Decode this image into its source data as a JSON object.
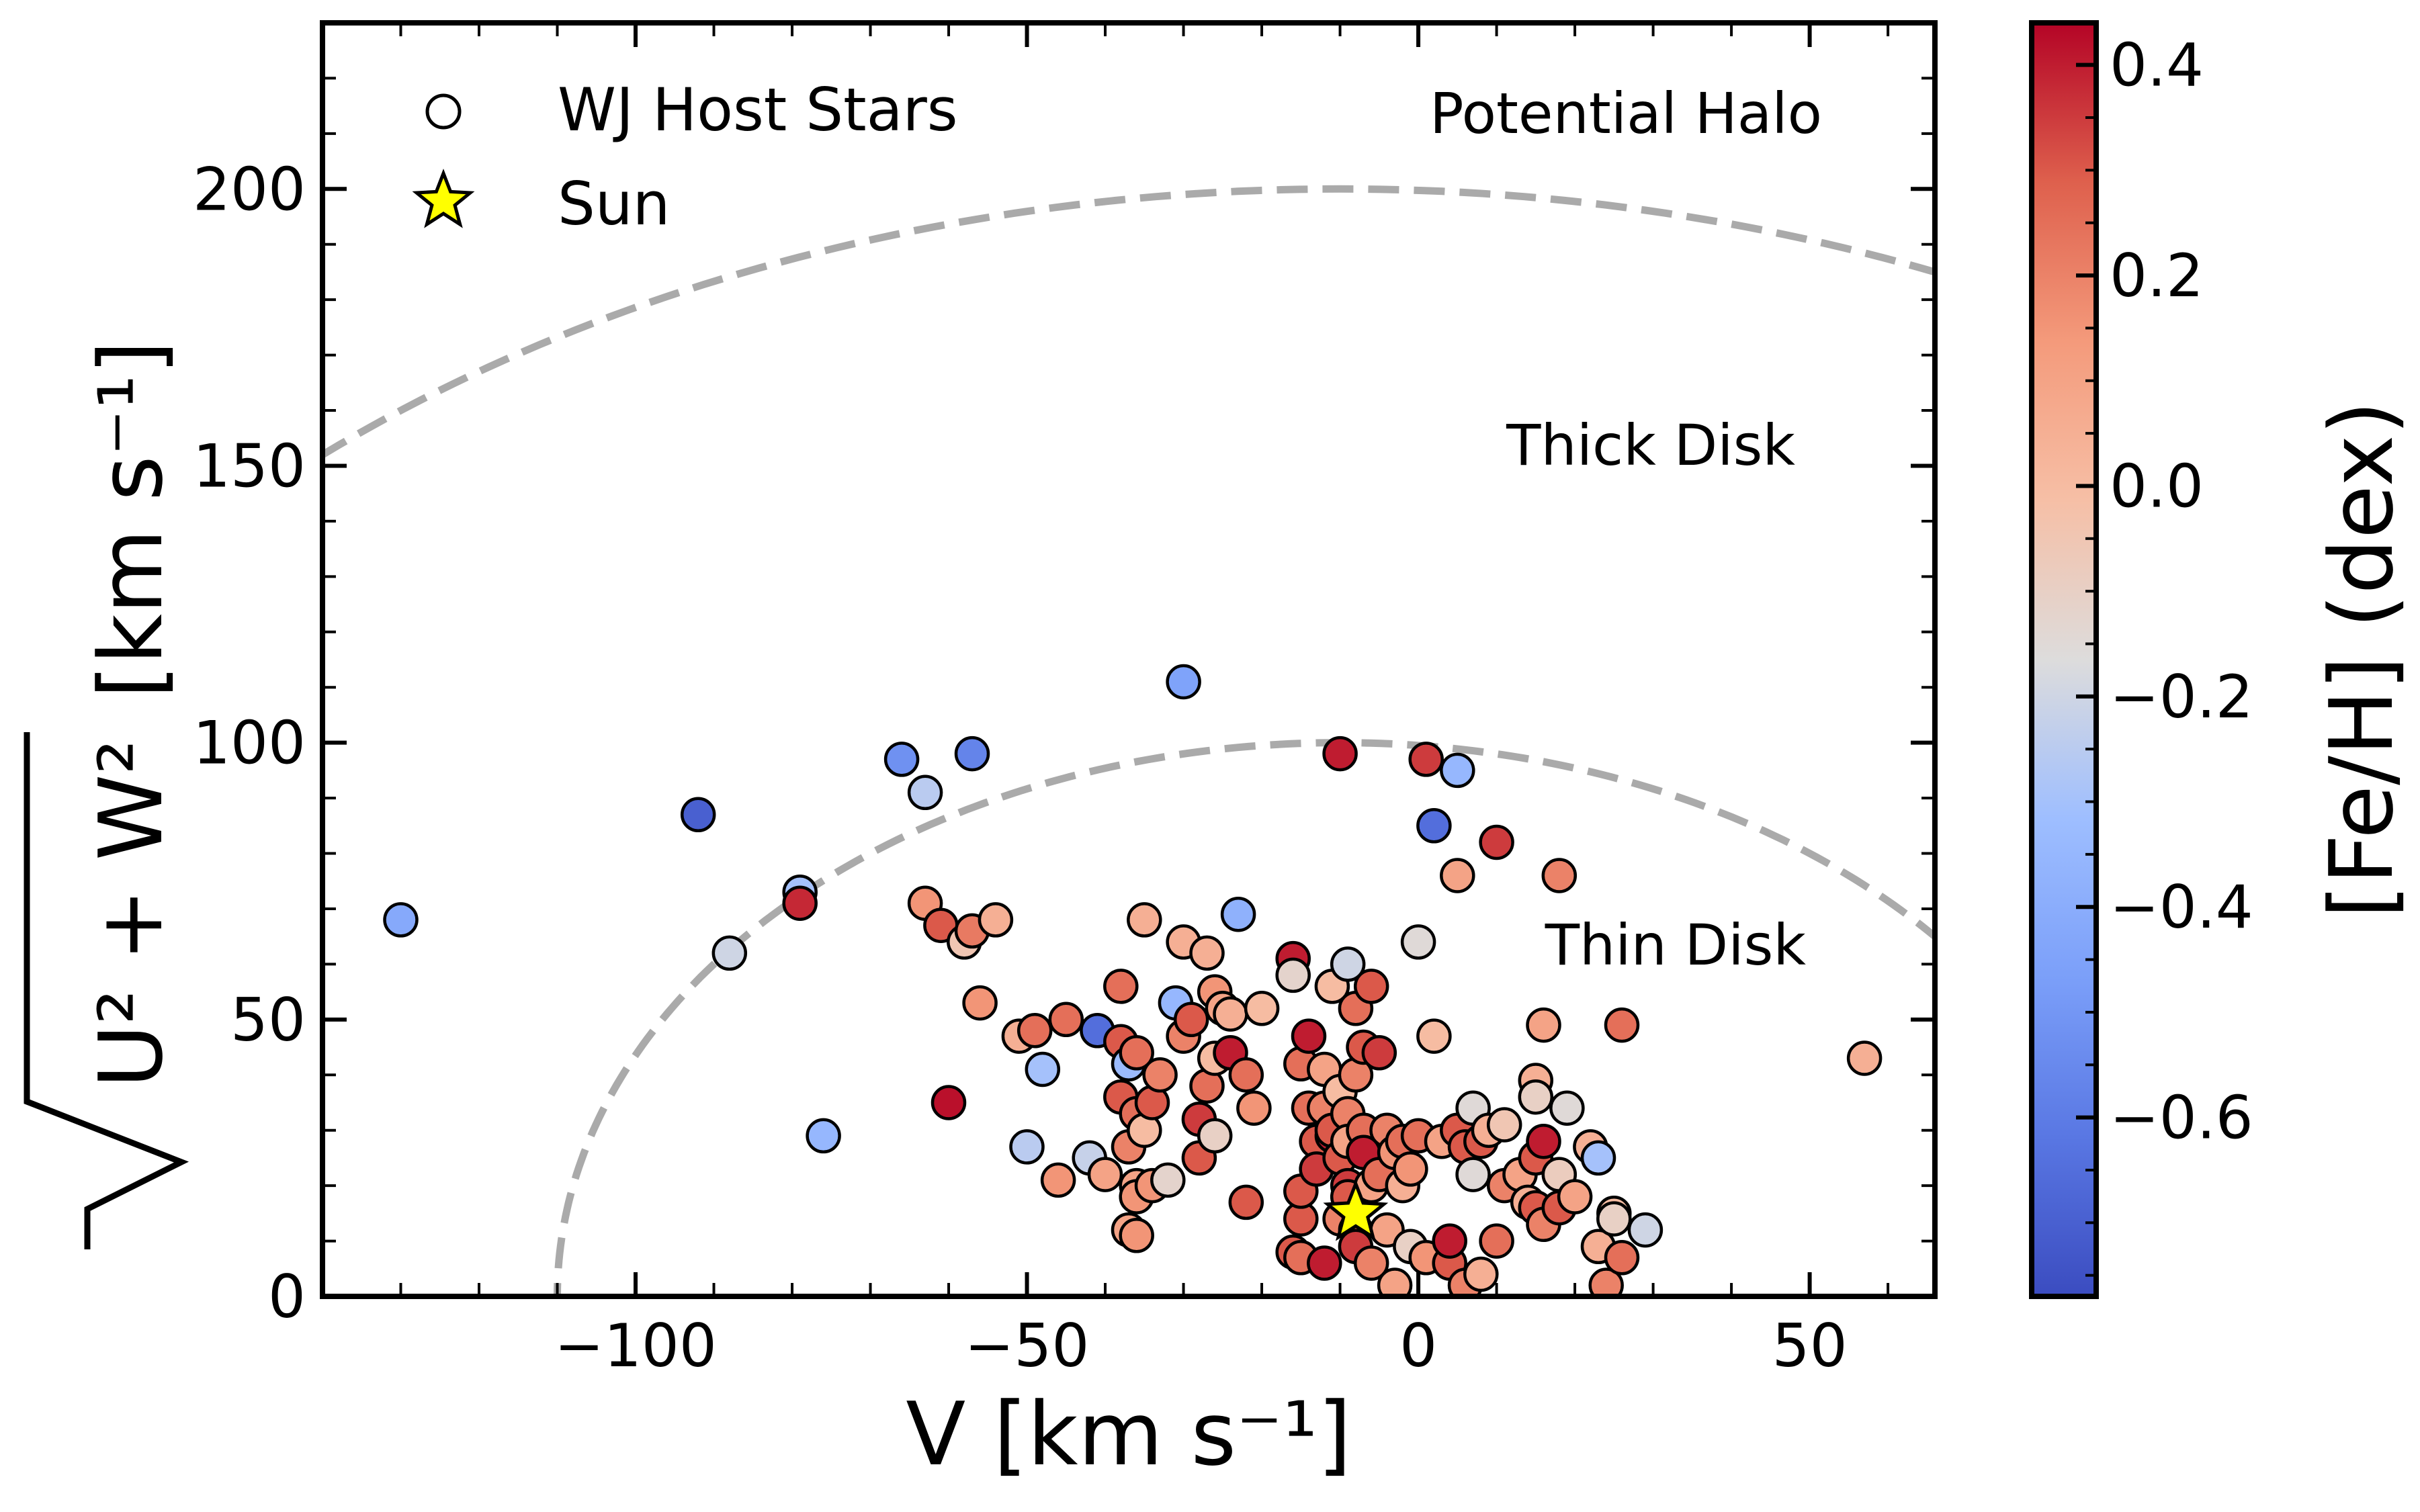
{
  "chart_data": {
    "type": "scatter",
    "title": "",
    "xlabel": "V [km s⁻¹]",
    "ylabel_radical": "U² + W²",
    "ylabel_units": "[km s⁻¹]",
    "xlim": [
      -140,
      66
    ],
    "ylim": [
      0,
      230
    ],
    "xticks": [
      -100,
      -50,
      0,
      50
    ],
    "xtick_labels": [
      "−100",
      "−50",
      "0",
      "50"
    ],
    "yticks": [
      0,
      50,
      100,
      150,
      200
    ],
    "ytick_labels": [
      "0",
      "50",
      "100",
      "150",
      "200"
    ],
    "grid": false,
    "legend_position": "top-left",
    "legend": [
      {
        "label": "WJ Host Stars",
        "marker": "circle-open"
      },
      {
        "label": "Sun",
        "marker": "star",
        "color": "#ffff00"
      }
    ],
    "annotations": [
      "Potential Halo",
      "Thick Disk",
      "Thin Disk"
    ],
    "boundaries": [
      {
        "style": "dashed",
        "color": "#aaaaaa",
        "v_lsr": -10,
        "radius": 100
      },
      {
        "style": "dashed",
        "color": "#aaaaaa",
        "v_lsr": -10,
        "radius": 200
      }
    ],
    "colorbar": {
      "label": "[Fe/H] (dex)",
      "cmap": "coolwarm",
      "range": [
        -0.77,
        0.44
      ],
      "ticks": [
        0.4,
        0.2,
        0.0,
        -0.2,
        -0.4,
        -0.6
      ],
      "tick_labels": [
        "0.4",
        "0.2",
        "0.0",
        "−0.2",
        "−0.4",
        "−0.6"
      ]
    },
    "sun": {
      "x": -8,
      "y": 15
    },
    "series": [
      {
        "name": "WJ Host Stars",
        "points": [
          [
            -130,
            68,
            -0.42
          ],
          [
            -92,
            87,
            -0.7
          ],
          [
            -88,
            62,
            -0.2
          ],
          [
            -79,
            73,
            -0.3
          ],
          [
            -79,
            71,
            0.38
          ],
          [
            -76,
            29,
            -0.35
          ],
          [
            -66,
            97,
            -0.52
          ],
          [
            -63,
            91,
            -0.25
          ],
          [
            -63,
            71,
            0.15
          ],
          [
            -61,
            67,
            0.3
          ],
          [
            -60,
            35,
            0.42
          ],
          [
            -58,
            64,
            -0.05
          ],
          [
            -57,
            98,
            -0.57
          ],
          [
            -57,
            66,
            0.22
          ],
          [
            -56,
            53,
            0.15
          ],
          [
            -54,
            68,
            0.05
          ],
          [
            -51,
            47,
            0.05
          ],
          [
            -50,
            27,
            -0.25
          ],
          [
            -49,
            48,
            0.25
          ],
          [
            -48,
            41,
            -0.3
          ],
          [
            -46,
            21,
            0.15
          ],
          [
            -45,
            50,
            0.25
          ],
          [
            -42,
            25,
            -0.22
          ],
          [
            -41,
            48,
            -0.65
          ],
          [
            -40,
            22,
            0.1
          ],
          [
            -38,
            56,
            0.25
          ],
          [
            -38,
            46,
            0.3
          ],
          [
            -38,
            36,
            0.3
          ],
          [
            -37,
            12,
            0.1
          ],
          [
            -37,
            27,
            0.2
          ],
          [
            -37,
            42,
            -0.33
          ],
          [
            -36,
            44,
            0.25
          ],
          [
            -36,
            33,
            0.25
          ],
          [
            -36,
            20,
            0.1
          ],
          [
            -36,
            18,
            0.15
          ],
          [
            -36,
            11,
            0.15
          ],
          [
            -35,
            68,
            0.05
          ],
          [
            -35,
            30,
            0.0
          ],
          [
            -34,
            20,
            0.15
          ],
          [
            -34,
            35,
            0.3
          ],
          [
            -33,
            40,
            0.2
          ],
          [
            -32,
            21,
            -0.12
          ],
          [
            -31,
            53,
            -0.35
          ],
          [
            -30,
            111,
            -0.45
          ],
          [
            -30,
            47,
            0.2
          ],
          [
            -30,
            64,
            0.05
          ],
          [
            -29,
            50,
            0.3
          ],
          [
            -28,
            32,
            0.35
          ],
          [
            -28,
            25,
            0.3
          ],
          [
            -27,
            62,
            0.05
          ],
          [
            -27,
            38,
            0.25
          ],
          [
            -26,
            55,
            0.15
          ],
          [
            -26,
            29,
            -0.1
          ],
          [
            -26,
            43,
            0.0
          ],
          [
            -25,
            52,
            0.1
          ],
          [
            -24,
            44,
            0.4
          ],
          [
            -24,
            51,
            0.05
          ],
          [
            -23,
            69,
            -0.38
          ],
          [
            -22,
            17,
            0.3
          ],
          [
            -22,
            40,
            0.25
          ],
          [
            -21,
            34,
            0.15
          ],
          [
            -20,
            52,
            0.0
          ],
          [
            -16,
            61,
            0.4
          ],
          [
            -16,
            58,
            -0.12
          ],
          [
            -16,
            8,
            0.3
          ],
          [
            -15,
            7,
            0.25
          ],
          [
            -15,
            14,
            0.3
          ],
          [
            -15,
            19,
            0.3
          ],
          [
            -15,
            42,
            0.25
          ],
          [
            -14,
            47,
            0.4
          ],
          [
            -14,
            34,
            0.25
          ],
          [
            -13,
            28,
            0.3
          ],
          [
            -13,
            23,
            0.35
          ],
          [
            -12,
            6,
            0.4
          ],
          [
            -12,
            34,
            0.2
          ],
          [
            -12,
            41,
            0.1
          ],
          [
            -11,
            56,
            0.0
          ],
          [
            -11,
            29,
            0.4
          ],
          [
            -11,
            30,
            0.3
          ],
          [
            -10,
            98,
            0.4
          ],
          [
            -10,
            37,
            0.0
          ],
          [
            -10,
            25,
            0.3
          ],
          [
            -10,
            14,
            0.2
          ],
          [
            -9,
            60,
            -0.2
          ],
          [
            -9,
            33,
            0.2
          ],
          [
            -9,
            20,
            0.35
          ],
          [
            -9,
            18,
            0.3
          ],
          [
            -9,
            28,
            0.1
          ],
          [
            -8,
            52,
            0.25
          ],
          [
            -8,
            12,
            0.3
          ],
          [
            -8,
            9,
            0.35
          ],
          [
            -8,
            40,
            0.2
          ],
          [
            -7,
            45,
            0.3
          ],
          [
            -7,
            30,
            0.25
          ],
          [
            -7,
            26,
            0.4
          ],
          [
            -6,
            56,
            0.3
          ],
          [
            -6,
            20,
            0.1
          ],
          [
            -6,
            6,
            0.2
          ],
          [
            -5,
            44,
            0.35
          ],
          [
            -5,
            22,
            0.25
          ],
          [
            -4,
            12,
            0.1
          ],
          [
            -4,
            30,
            0.2
          ],
          [
            -3,
            2,
            0.1
          ],
          [
            -3,
            26,
            0.15
          ],
          [
            -2,
            20,
            0.05
          ],
          [
            -2,
            28,
            0.25
          ],
          [
            -1,
            9,
            -0.1
          ],
          [
            -1,
            23,
            0.15
          ],
          [
            0,
            29,
            0.25
          ],
          [
            0,
            64,
            -0.15
          ],
          [
            1,
            7,
            0.15
          ],
          [
            1,
            97,
            0.35
          ],
          [
            2,
            85,
            -0.65
          ],
          [
            2,
            47,
            0.0
          ],
          [
            3,
            28,
            0.1
          ],
          [
            4,
            6,
            0.3
          ],
          [
            4,
            10,
            0.4
          ],
          [
            5,
            95,
            -0.35
          ],
          [
            5,
            30,
            0.3
          ],
          [
            5,
            76,
            0.1
          ],
          [
            6,
            2,
            0.2
          ],
          [
            6,
            27,
            0.3
          ],
          [
            7,
            22,
            -0.15
          ],
          [
            7,
            34,
            -0.15
          ],
          [
            8,
            4,
            0.05
          ],
          [
            8,
            28,
            0.3
          ],
          [
            9,
            30,
            0.05
          ],
          [
            10,
            82,
            0.35
          ],
          [
            10,
            10,
            0.25
          ],
          [
            11,
            31,
            -0.05
          ],
          [
            11,
            20,
            0.2
          ],
          [
            13,
            22,
            0.1
          ],
          [
            14,
            17,
            0.05
          ],
          [
            15,
            16,
            0.3
          ],
          [
            15,
            25,
            0.3
          ],
          [
            15,
            39,
            0.05
          ],
          [
            15,
            36,
            -0.1
          ],
          [
            16,
            49,
            0.1
          ],
          [
            16,
            28,
            0.4
          ],
          [
            16,
            13,
            0.2
          ],
          [
            18,
            76,
            0.2
          ],
          [
            18,
            22,
            -0.08
          ],
          [
            18,
            16,
            0.3
          ],
          [
            19,
            34,
            -0.15
          ],
          [
            20,
            18,
            0.1
          ],
          [
            22,
            27,
            0.05
          ],
          [
            23,
            25,
            -0.3
          ],
          [
            23,
            9,
            0.05
          ],
          [
            24,
            2,
            0.2
          ],
          [
            25,
            15,
            0.0
          ],
          [
            25,
            14,
            -0.1
          ],
          [
            26,
            49,
            0.25
          ],
          [
            26,
            7,
            0.25
          ],
          [
            29,
            12,
            -0.2
          ],
          [
            57,
            43,
            0.05
          ]
        ]
      }
    ]
  }
}
